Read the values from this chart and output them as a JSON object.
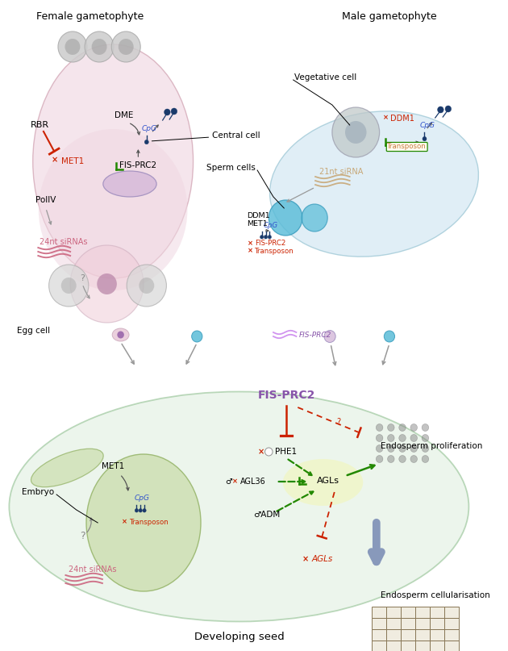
{
  "title": "Developing seed",
  "female_gametophyte_label": "Female gametophyte",
  "male_gametophyte_label": "Male gametophyte",
  "central_cell_label": "Central cell",
  "sperm_cells_label": "Sperm cells",
  "vegetative_cell_label": "Vegetative cell",
  "egg_cell_label": "Egg cell",
  "embryo_label": "Embryo",
  "endosperm_prolif_label": "Endosperm proliferation",
  "endosperm_cell_label": "Endosperm cellularisation",
  "colors": {
    "female_bg": "#f0d8e2",
    "male_bg": "#cce4f0",
    "seed_bg": "#ddeedd",
    "embryo_inner": "#c8dba8",
    "purple_cell": "#9b8ec4",
    "light_purple": "#d4b8d9",
    "teal_cell": "#5abcd8",
    "red": "#cc2200",
    "green": "#228800",
    "dark_blue": "#1a3a6b",
    "orange_text": "#c87840",
    "pink_sirna": "#cc6680",
    "tan_sirna": "#c8a878",
    "fis_purple": "#8855aa",
    "gray_arrow": "#888888",
    "dot_gray": "#999999"
  }
}
